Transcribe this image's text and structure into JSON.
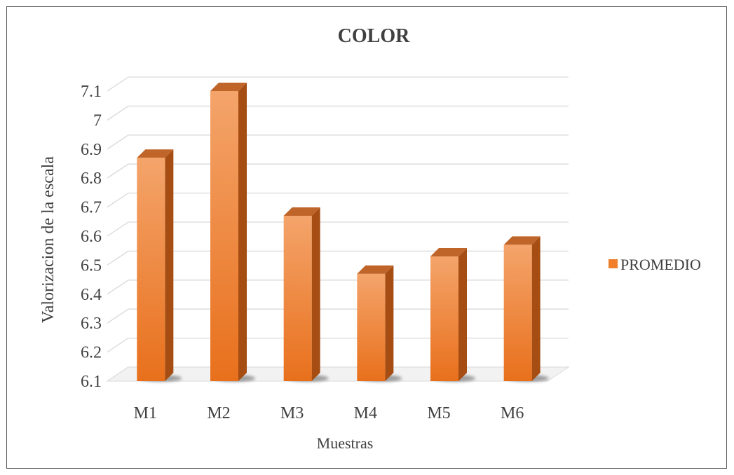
{
  "chart_data": {
    "type": "bar",
    "title": "COLOR",
    "xlabel": "Muestras",
    "ylabel": "Valorizacion de la escala",
    "categories": [
      "M1",
      "M2",
      "M3",
      "M4",
      "M5",
      "M6"
    ],
    "series": [
      {
        "name": "PROMEDIO",
        "values": [
          6.87,
          7.1,
          6.67,
          6.47,
          6.53,
          6.57
        ]
      }
    ],
    "yticks": [
      "6.1",
      "6.2",
      "6.3",
      "6.4",
      "6.5",
      "6.6",
      "6.7",
      "6.8",
      "6.9",
      "7",
      "7.1"
    ],
    "ylim": [
      6.1,
      7.1
    ],
    "grid": true,
    "legend_position": "right",
    "style": "3d-column",
    "colors": {
      "front_light": "#f4a46b",
      "front_dark": "#e8701c",
      "side": "#a54d12",
      "top": "#c0652a",
      "legend_swatch": "#f07e2a",
      "grid": "#d9d9d9",
      "text": "#404040"
    }
  }
}
